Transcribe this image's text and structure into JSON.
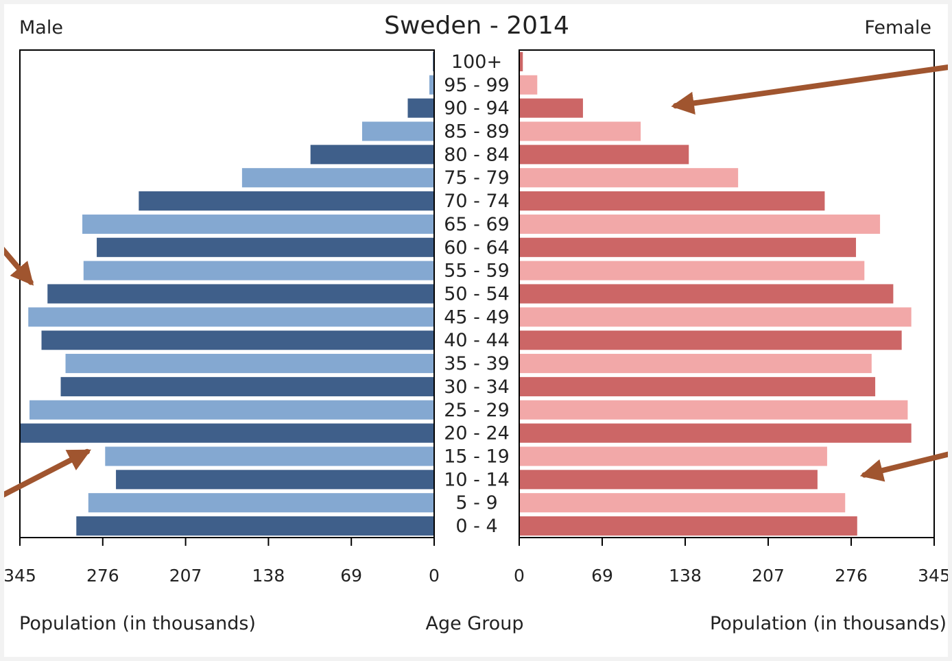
{
  "chart_data": {
    "type": "bar",
    "title": "Sweden - 2014",
    "left_label": "Male",
    "right_label": "Female",
    "xlabel_left": "Population (in thousands)",
    "xlabel_center": "Age Group",
    "xlabel_right": "Population (in thousands)",
    "xlim": [
      0,
      345
    ],
    "ticks": [
      "345",
      "276",
      "207",
      "138",
      "69",
      "0"
    ],
    "ticks_right": [
      "0",
      "69",
      "138",
      "207",
      "276",
      "345"
    ],
    "tick_values": [
      345,
      276,
      207,
      138,
      69,
      0
    ],
    "tick_values_right": [
      0,
      69,
      138,
      207,
      276,
      345
    ],
    "categories": [
      "100+",
      "95 - 99",
      "90 - 94",
      "85 - 89",
      "80 - 84",
      "75 - 79",
      "70 - 74",
      "65 - 69",
      "60 - 64",
      "55 - 59",
      "50 - 54",
      "45 - 49",
      "40 - 44",
      "35 - 39",
      "30 - 34",
      "25 - 29",
      "20 - 24",
      "15 - 19",
      "10 - 14",
      "5 - 9",
      "0 - 4"
    ],
    "series": [
      {
        "name": "Male",
        "values": [
          1,
          4,
          22,
          60,
          103,
          160,
          246,
          293,
          281,
          292,
          322,
          338,
          327,
          307,
          311,
          337,
          345,
          274,
          265,
          288,
          298
        ],
        "colors": [
          "#3f5f8a",
          "#84a8d1"
        ]
      },
      {
        "name": "Female",
        "values": [
          3,
          15,
          53,
          101,
          141,
          182,
          254,
          300,
          280,
          287,
          311,
          326,
          318,
          293,
          296,
          323,
          326,
          256,
          248,
          271,
          281
        ],
        "colors": [
          "#cc6666",
          "#f2a8a8"
        ]
      }
    ],
    "annotations": [
      {
        "type": "arrow",
        "color": "#a0552f",
        "from_value": [
          389,
          0.5
        ],
        "to_value": [
          130,
          2.4
        ],
        "side": "right"
      },
      {
        "type": "arrow",
        "color": "#a0552f",
        "from_value": [
          389,
          17.0
        ],
        "to_value": [
          287,
          18.3
        ],
        "side": "right"
      },
      {
        "type": "arrow",
        "color": "#a0552f",
        "from_value": [
          364,
          8.3
        ],
        "to_value": [
          336,
          10.0
        ],
        "side": "left"
      },
      {
        "type": "arrow",
        "color": "#a0552f",
        "from_value": [
          364,
          19.3
        ],
        "to_value": [
          289,
          17.3
        ],
        "side": "left"
      }
    ]
  }
}
